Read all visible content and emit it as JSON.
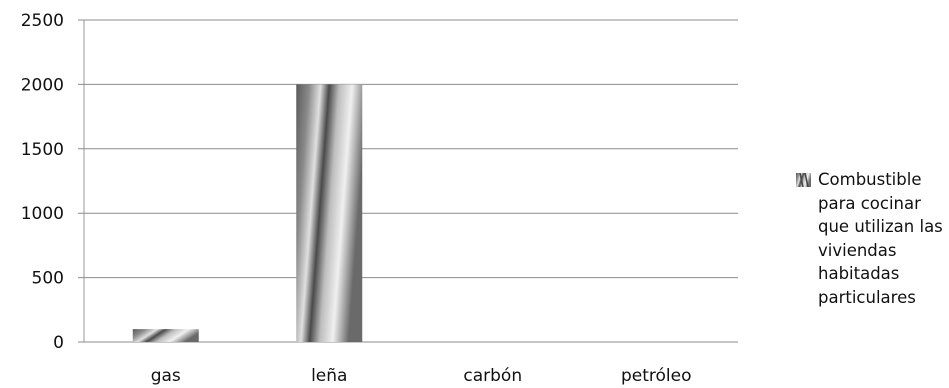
{
  "chart_data": {
    "type": "bar",
    "categories": [
      "gas",
      "leña",
      "carbón",
      "petróleo"
    ],
    "series": [
      {
        "name": "Combustible para cocinar que utilizan las viviendas habitadas particulares",
        "values": [
          100,
          2000,
          0,
          0
        ]
      }
    ],
    "y_ticks": [
      "0",
      "500",
      "1000",
      "1500",
      "2000",
      "2500"
    ],
    "ylim": [
      0,
      2500
    ],
    "title": "",
    "xlabel": "",
    "ylabel": "",
    "grid": true,
    "legend_position": "right"
  }
}
